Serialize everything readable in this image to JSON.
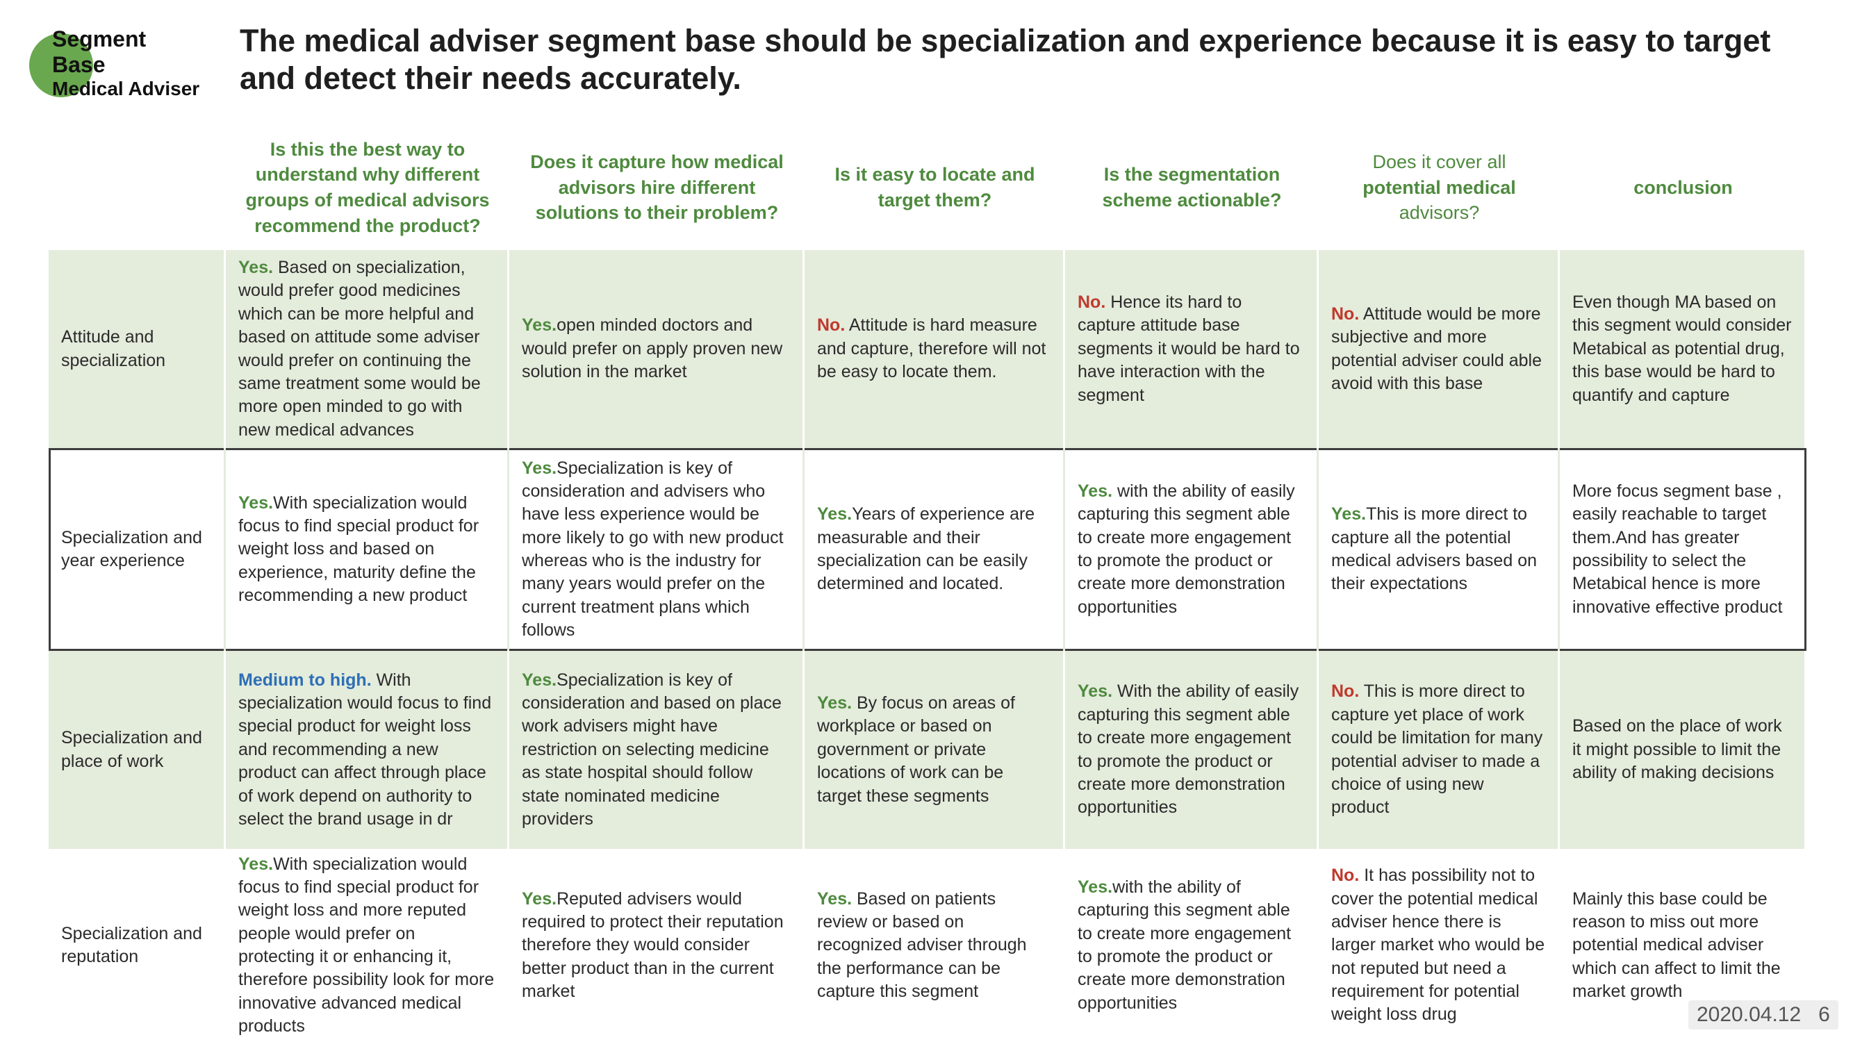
{
  "logo": {
    "line1": "Segment",
    "line2": "Base",
    "line3": "Medical Adviser"
  },
  "title": "The medical adviser segment base should be specialization and experience because it is easy to target and detect their needs accurately.",
  "headers": [
    "Is this the best way to understand why different groups of medical advisors recommend the product?",
    "Does it capture how medical advisors hire different solutions to their problem?",
    "Is it easy to locate and target them?",
    "Is the segmentation scheme actionable?",
    "Does it cover all",
    "potential medical",
    "advisors?",
    "conclusion"
  ],
  "rows": [
    {
      "label": "Attitude and specialization",
      "c1": {
        "tag": "Yes.",
        "text": " Based on specialization, would prefer good medicines which can be more helpful and based on attitude some adviser would prefer on continuing the same treatment some would be more open minded to go with new medical advances"
      },
      "c2": {
        "tag": "Yes.",
        "text": "open minded doctors and would prefer on apply proven new solution in the market"
      },
      "c3": {
        "tag": "No.",
        "text": " Attitude is hard measure and capture, therefore will not be easy to locate them."
      },
      "c4": {
        "tag": "No.",
        "text": " Hence its hard to capture attitude base segments it would be hard to have interaction with the segment"
      },
      "c5": {
        "tag": "No.",
        "text": " Attitude would be more subjective and more potential adviser could able avoid with this base"
      },
      "c6": {
        "text": "Even though MA based on this segment would consider Metabical as potential drug, this base would be hard to quantify and capture"
      }
    },
    {
      "label": "Specialization and year experience",
      "c1": {
        "tag": "Yes.",
        "text": "With specialization would focus to find special product for weight loss and based on experience, maturity define the recommending a new product"
      },
      "c2": {
        "tag": "Yes.",
        "text": "Specialization is key of consideration and  advisers who have less experience would be more likely to go with new product whereas who is the industry for many years would prefer on the current treatment plans which follows"
      },
      "c3": {
        "tag": "Yes.",
        "text": "Years of experience are measurable and their specialization can be easily determined and located."
      },
      "c4": {
        "tag": "Yes.",
        "text": " with the ability of easily capturing this segment able to create more engagement to promote the product or create more demonstration opportunities"
      },
      "c5": {
        "tag": "Yes.",
        "text": "This is more direct to capture all the potential medical advisers based on their expectations"
      },
      "c6": {
        "text": "More focus segment base , easily reachable to target them.And has greater possibility to select the Metabical hence is more innovative effective product"
      }
    },
    {
      "label": "Specialization and place of work",
      "c1": {
        "tag": "Medium to high.",
        "text": " With specialization would focus to find special product for weight loss and recommending a new product can affect through place of work depend on authority to select the brand usage in dr"
      },
      "c2": {
        "tag": "Yes.",
        "text": "Specialization is key of consideration and based on place work advisers might have restriction on selecting medicine as state hospital should follow state nominated medicine providers"
      },
      "c3": {
        "tag": "Yes.",
        "text": " By focus on areas of workplace or based on government or private locations of work can be target these segments"
      },
      "c4": {
        "tag": "Yes.",
        "text": " With the ability of easily capturing this segment able to create more engagement to promote the product or create more demonstration opportunities"
      },
      "c5": {
        "tag": "No.",
        "text": " This is more direct to capture  yet place of work could be limitation for many potential adviser to made a choice of using new product"
      },
      "c6": {
        "text": "Based on the place of work it might possible to limit the ability of making decisions"
      }
    },
    {
      "label": "Specialization and reputation",
      "c1": {
        "tag": "Yes.",
        "text": "With specialization would focus to find special product for weight loss and more reputed people would prefer on protecting it or enhancing it, therefore possibility look for more innovative advanced medical products"
      },
      "c2": {
        "tag": "Yes.",
        "text": "Reputed advisers would required to protect their reputation therefore they would consider better product than in the current market"
      },
      "c3": {
        "tag": "Yes.",
        "text": " Based on patients review or based on recognized adviser through the performance can be capture this segment"
      },
      "c4": {
        "tag": "Yes.",
        "text": "with the ability of capturing this segment able to create more engagement to promote the product or create more demonstration opportunities"
      },
      "c5": {
        "tag": "No.",
        "text": " It has possibility not to cover the potential medical adviser hence there is larger market who would be not reputed but need a requirement for potential weight loss drug"
      },
      "c6": {
        "text": "Mainly this base could be reason to miss out more potential medical adviser which can affect to limit the market growth"
      }
    }
  ],
  "footer": {
    "date": "2020.04.12",
    "page": "6"
  },
  "colors": {
    "accent_green": "#4e8a3e",
    "no_red": "#c0392b",
    "medium_blue": "#2e6fb5",
    "cell_bg": "#e4ecdc"
  }
}
